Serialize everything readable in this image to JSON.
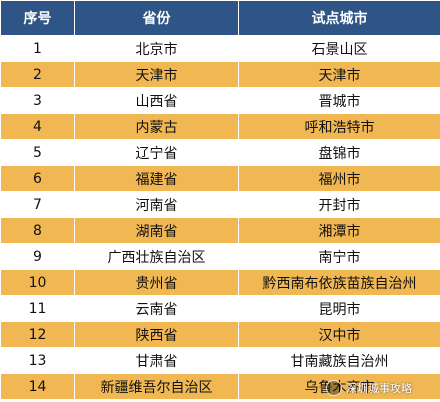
{
  "table": {
    "headers": [
      "序号",
      "省份",
      "试点城市"
    ],
    "rows": [
      {
        "no": "1",
        "province": "北京市",
        "city": "石景山区"
      },
      {
        "no": "2",
        "province": "天津市",
        "city": "天津市"
      },
      {
        "no": "3",
        "province": "山西省",
        "city": "晋城市"
      },
      {
        "no": "4",
        "province": "内蒙古",
        "city": "呼和浩特市"
      },
      {
        "no": "5",
        "province": "辽宁省",
        "city": "盘锦市"
      },
      {
        "no": "6",
        "province": "福建省",
        "city": "福州市"
      },
      {
        "no": "7",
        "province": "河南省",
        "city": "开封市"
      },
      {
        "no": "8",
        "province": "湖南省",
        "city": "湘潭市"
      },
      {
        "no": "9",
        "province": "广西壮族自治区",
        "city": "南宁市"
      },
      {
        "no": "10",
        "province": "贵州省",
        "city": "黔西南布依族苗族自治州"
      },
      {
        "no": "11",
        "province": "云南省",
        "city": "昆明市"
      },
      {
        "no": "12",
        "province": "陕西省",
        "city": "汉中市"
      },
      {
        "no": "13",
        "province": "甘肃省",
        "city": "甘南藏族自治州"
      },
      {
        "no": "14",
        "province": "新疆维吾尔自治区",
        "city": "乌鲁木齐市"
      }
    ]
  },
  "watermark": {
    "text": "深圳城事攻略"
  },
  "colors": {
    "header": "#2e5585",
    "stripe": "#f0b753",
    "base": "#ffffff"
  }
}
